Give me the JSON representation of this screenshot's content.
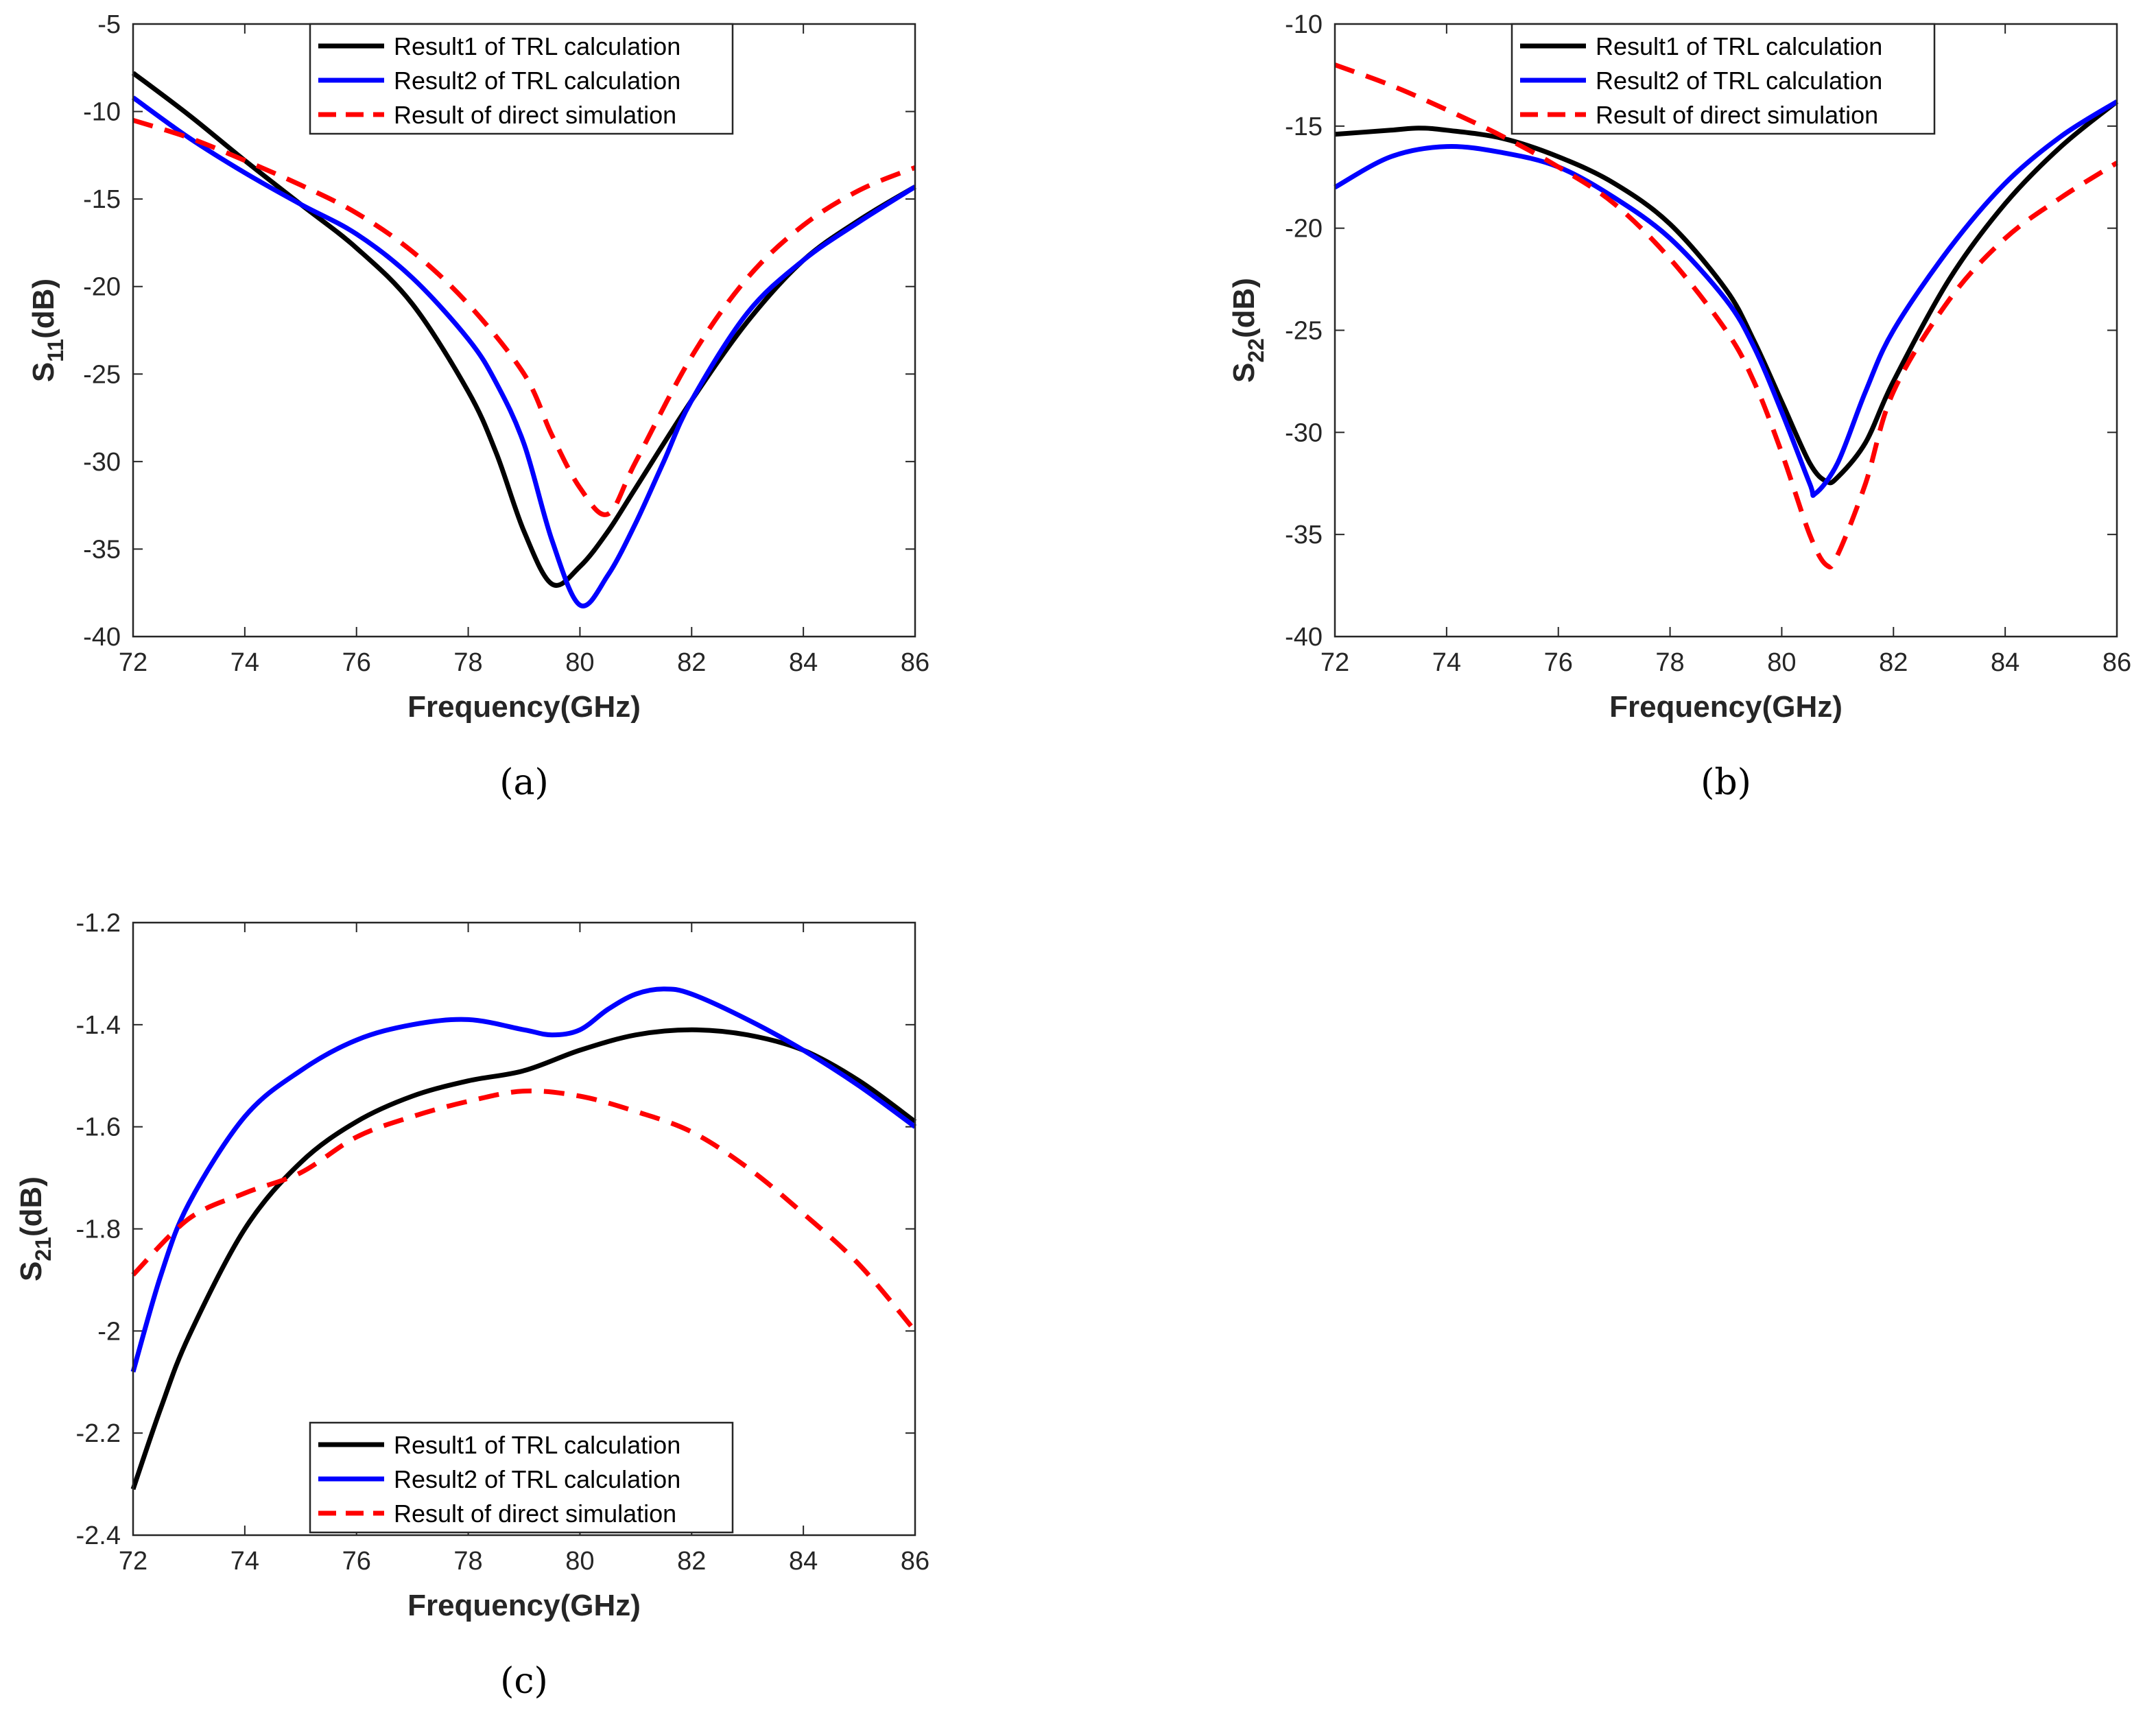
{
  "chart_data": [
    {
      "type": "line",
      "caption": "(a)",
      "xlabel": "Frequency(GHz)",
      "ylabel_main": "S",
      "ylabel_sub": "11",
      "ylabel_unit": "(dB)",
      "xlim": [
        72,
        86
      ],
      "ylim": [
        -40,
        -5
      ],
      "xticks": [
        72,
        74,
        76,
        78,
        80,
        82,
        84,
        86
      ],
      "yticks": [
        -5,
        -10,
        -15,
        -20,
        -25,
        -30,
        -35,
        -40
      ],
      "legend_position": "top",
      "series": [
        {
          "name": "Result1 of TRL calculation",
          "color": "#000000",
          "dash": "solid",
          "x": [
            72,
            73,
            74,
            75,
            76,
            77,
            78,
            78.5,
            79,
            79.5,
            80,
            80.5,
            81,
            82,
            83,
            84,
            85,
            86
          ],
          "y": [
            -7.8,
            -10.2,
            -12.8,
            -15.3,
            -17.8,
            -21.0,
            -26.0,
            -29.5,
            -34.0,
            -37.0,
            -36.0,
            -34.0,
            -31.5,
            -26.5,
            -22.0,
            -18.5,
            -16.2,
            -14.3
          ]
        },
        {
          "name": "Result2 of TRL calculation",
          "color": "#0000FF",
          "dash": "solid",
          "x": [
            72,
            73,
            74,
            75,
            76,
            77,
            78,
            78.5,
            79,
            79.5,
            80,
            80.5,
            81,
            81.5,
            82,
            83,
            84,
            85,
            86
          ],
          "y": [
            -9.2,
            -11.5,
            -13.5,
            -15.3,
            -17.0,
            -19.5,
            -23.0,
            -25.5,
            -29.0,
            -34.5,
            -38.2,
            -36.5,
            -33.5,
            -30.0,
            -26.5,
            -21.5,
            -18.5,
            -16.3,
            -14.3
          ]
        },
        {
          "name": "Result of direct simulation",
          "color": "#FF0000",
          "dash": "dashed",
          "x": [
            72,
            73,
            74,
            75,
            76,
            77,
            78,
            79,
            79.5,
            80,
            80.5,
            81,
            82,
            83,
            84,
            85,
            86
          ],
          "y": [
            -10.5,
            -11.5,
            -12.8,
            -14.2,
            -15.8,
            -18.0,
            -21.0,
            -25.0,
            -28.5,
            -31.5,
            -33.0,
            -30.0,
            -24.0,
            -19.5,
            -16.5,
            -14.5,
            -13.2
          ]
        }
      ]
    },
    {
      "type": "line",
      "caption": "(b)",
      "xlabel": "Frequency(GHz)",
      "ylabel_main": "S",
      "ylabel_sub": "22",
      "ylabel_unit": "(dB)",
      "xlim": [
        72,
        86
      ],
      "ylim": [
        -40,
        -10
      ],
      "xticks": [
        72,
        74,
        76,
        78,
        80,
        82,
        84,
        86
      ],
      "yticks": [
        -10,
        -15,
        -20,
        -25,
        -30,
        -35,
        -40
      ],
      "legend_position": "top",
      "series": [
        {
          "name": "Result1 of TRL calculation",
          "color": "#000000",
          "dash": "solid",
          "x": [
            72,
            73,
            73.5,
            74,
            75,
            76,
            77,
            78,
            79,
            79.5,
            80,
            80.5,
            80.8,
            81,
            81.5,
            82,
            83,
            84,
            85,
            86
          ],
          "y": [
            -15.4,
            -15.2,
            -15.1,
            -15.2,
            -15.6,
            -16.5,
            -17.8,
            -19.8,
            -23.0,
            -25.5,
            -28.5,
            -31.5,
            -32.4,
            -32.2,
            -30.5,
            -27.5,
            -22.5,
            -18.8,
            -16.0,
            -13.8
          ]
        },
        {
          "name": "Result2 of TRL calculation",
          "color": "#0000FF",
          "dash": "solid",
          "x": [
            72,
            73,
            74,
            75,
            76,
            77,
            78,
            79,
            79.5,
            80,
            80.5,
            80.6,
            81,
            81.5,
            82,
            83,
            84,
            85,
            86
          ],
          "y": [
            -18.0,
            -16.5,
            -16.0,
            -16.3,
            -17.0,
            -18.5,
            -20.5,
            -23.5,
            -25.8,
            -29.0,
            -32.5,
            -33.0,
            -31.5,
            -28.0,
            -25.0,
            -21.0,
            -17.8,
            -15.5,
            -13.8
          ]
        },
        {
          "name": "Result of direct simulation",
          "color": "#FF0000",
          "dash": "dashed",
          "x": [
            72,
            73,
            74,
            75,
            76,
            77,
            78,
            79,
            79.5,
            80,
            80.5,
            80.8,
            81,
            81.5,
            82,
            83,
            84,
            85,
            86
          ],
          "y": [
            -12.0,
            -13.0,
            -14.2,
            -15.5,
            -17.0,
            -18.8,
            -21.5,
            -25.0,
            -27.5,
            -31.0,
            -35.0,
            -36.5,
            -36.0,
            -32.5,
            -28.0,
            -23.5,
            -20.5,
            -18.5,
            -16.8
          ]
        }
      ]
    },
    {
      "type": "line",
      "caption": "(c)",
      "xlabel": "Frequency(GHz)",
      "ylabel_main": "S",
      "ylabel_sub": "21",
      "ylabel_unit": "(dB)",
      "xlim": [
        72,
        86
      ],
      "ylim": [
        -2.4,
        -1.2
      ],
      "xticks": [
        72,
        74,
        76,
        78,
        80,
        82,
        84,
        86
      ],
      "yticks": [
        "-1.2",
        "-1.4",
        "-1.6",
        "-1.8",
        "-2",
        "-2.2",
        "-2.4"
      ],
      "legend_position": "bottom",
      "series": [
        {
          "name": "Result1 of TRL calculation",
          "color": "#000000",
          "dash": "solid",
          "x": [
            72,
            72.5,
            73,
            74,
            75,
            76,
            77,
            78,
            79,
            80,
            81,
            82,
            83,
            84,
            85,
            86
          ],
          "y": [
            -2.31,
            -2.15,
            -2.01,
            -1.8,
            -1.67,
            -1.59,
            -1.54,
            -1.51,
            -1.49,
            -1.45,
            -1.42,
            -1.41,
            -1.42,
            -1.45,
            -1.51,
            -1.59
          ]
        },
        {
          "name": "Result2 of TRL calculation",
          "color": "#0000FF",
          "dash": "solid",
          "x": [
            72,
            72.5,
            73,
            74,
            75,
            76,
            77,
            78,
            79,
            79.5,
            80,
            80.5,
            81,
            81.5,
            82,
            83,
            84,
            85,
            86
          ],
          "y": [
            -2.08,
            -1.89,
            -1.75,
            -1.58,
            -1.49,
            -1.43,
            -1.4,
            -1.39,
            -1.41,
            -1.42,
            -1.41,
            -1.37,
            -1.34,
            -1.33,
            -1.34,
            -1.39,
            -1.45,
            -1.52,
            -1.6
          ]
        },
        {
          "name": "Result of direct simulation",
          "color": "#FF0000",
          "dash": "dashed",
          "x": [
            72,
            73,
            74,
            75,
            76,
            77,
            78,
            79,
            80,
            81,
            82,
            83,
            84,
            85,
            86
          ],
          "y": [
            -1.89,
            -1.78,
            -1.73,
            -1.69,
            -1.62,
            -1.58,
            -1.55,
            -1.53,
            -1.54,
            -1.57,
            -1.61,
            -1.68,
            -1.77,
            -1.87,
            -2.0
          ]
        }
      ]
    }
  ]
}
